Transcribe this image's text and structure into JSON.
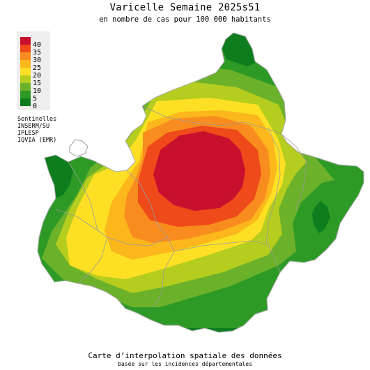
{
  "title": "Varicelle Semaine 2025s51",
  "subtitle": "en nombre de cas pour 100 000 habitants",
  "legend": {
    "ticks": [
      "40",
      "35",
      "30",
      "25",
      "20",
      "15",
      "10",
      "5",
      "0"
    ],
    "colors": [
      "#c8102e",
      "#ee4a1a",
      "#f98c1e",
      "#fbb71c",
      "#fde024",
      "#b4cd1e",
      "#6bb12a",
      "#2e9a26",
      "#0d7d1e"
    ]
  },
  "sources": [
    "Sentinelles",
    "INSERM/SU",
    "IPLESP",
    "IQVIA (EMR)"
  ],
  "footer": {
    "main": "Carte d’interpolation spatiale des données",
    "sub": "basée sur les incidences départementales"
  },
  "colors": {
    "background": "#ffffff",
    "legend_background": "#eeeeee",
    "boundaries": "#9a9a9a"
  }
}
